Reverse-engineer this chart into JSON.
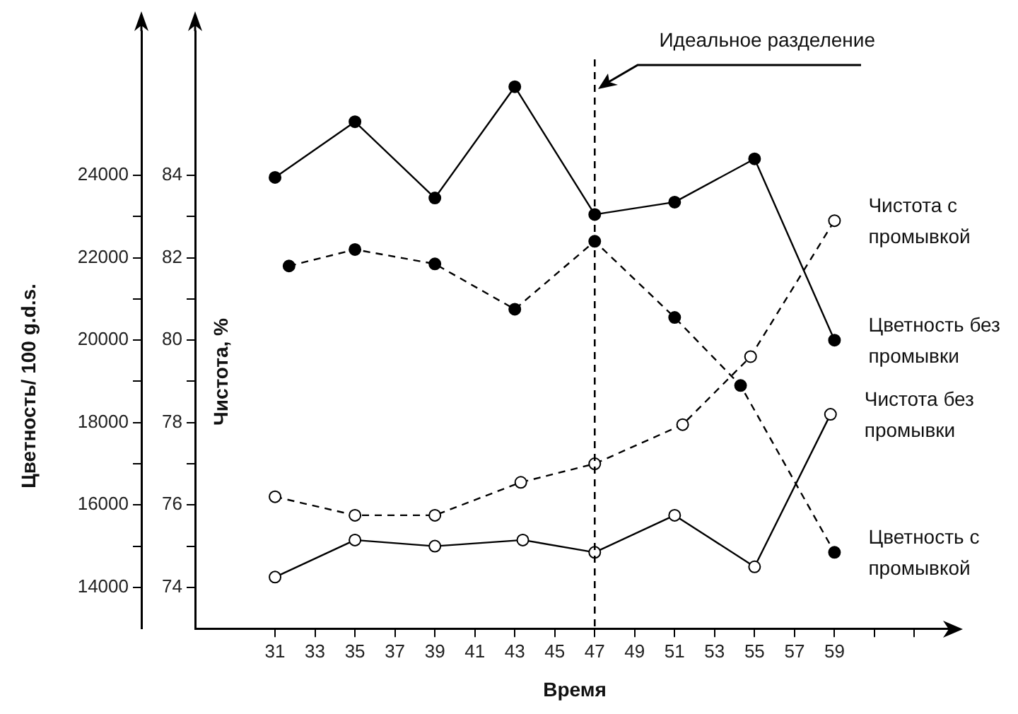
{
  "chart_data": {
    "type": "line",
    "xlabel": "Время",
    "ylabel": "Цветность/ 100 g.d.s.",
    "y2label": "Чистота, %",
    "xlim": [
      27,
      65
    ],
    "xticks": [
      31,
      33,
      35,
      37,
      39,
      41,
      43,
      45,
      47,
      49,
      51,
      53,
      55,
      57,
      59,
      {
        "value": 61,
        "label": null
      },
      {
        "value": 63,
        "label": null
      }
    ],
    "ylim": [
      13000,
      27500
    ],
    "yticks": [
      14000,
      {
        "value": 15000,
        "label": null
      },
      16000,
      {
        "value": 17000,
        "label": null
      },
      18000,
      {
        "value": 19000,
        "label": null
      },
      20000,
      {
        "value": 21000,
        "label": null
      },
      22000,
      {
        "value": 23000,
        "label": null
      },
      24000
    ],
    "y2lim": [
      73,
      87.5
    ],
    "y2ticks": [
      74,
      {
        "value": 75,
        "label": null
      },
      76,
      {
        "value": 77,
        "label": null
      },
      78,
      {
        "value": 79,
        "label": null
      },
      80,
      {
        "value": 81,
        "label": null
      },
      82,
      {
        "value": 83,
        "label": null
      },
      84
    ],
    "legend": false,
    "ref_lines": [
      {
        "axis": "x",
        "value": 47,
        "label": "Идеальное разделение",
        "line_style": "dashed",
        "color": "#000000"
      }
    ],
    "series": [
      {
        "name": "Чистота с промывкой",
        "color": "#000000",
        "axis": "y2",
        "line_style": "dashed",
        "marker": "circle-open",
        "x": [
          31,
          35,
          39,
          43.3,
          47,
          51.4,
          54.8,
          59
        ],
        "values": [
          76.2,
          75.75,
          75.75,
          76.55,
          77.0,
          77.95,
          79.6,
          82.9
        ]
      },
      {
        "name": "Цветность без промывки",
        "color": "#000000",
        "axis": "y",
        "line_style": "solid",
        "marker": "circle",
        "x": [
          31,
          35,
          39,
          43,
          47,
          51,
          55,
          59
        ],
        "values": [
          23950,
          25300,
          23450,
          26150,
          23050,
          23350,
          24400,
          20000
        ]
      },
      {
        "name": "Чистота без промывки",
        "color": "#000000",
        "axis": "y2",
        "line_style": "solid",
        "marker": "circle-open",
        "x": [
          31,
          35,
          39,
          43.4,
          47,
          51,
          55,
          58.8
        ],
        "values": [
          74.25,
          75.15,
          75.0,
          75.15,
          74.85,
          75.75,
          74.5,
          78.2
        ]
      },
      {
        "name": "Цветность с промывкой",
        "color": "#000000",
        "axis": "y",
        "line_style": "dashed",
        "marker": "circle",
        "x": [
          31.7,
          35,
          39,
          43,
          47,
          51,
          54.3,
          59
        ],
        "values": [
          21800,
          22200,
          21850,
          20750,
          22400,
          20550,
          18900,
          14850
        ]
      }
    ]
  }
}
